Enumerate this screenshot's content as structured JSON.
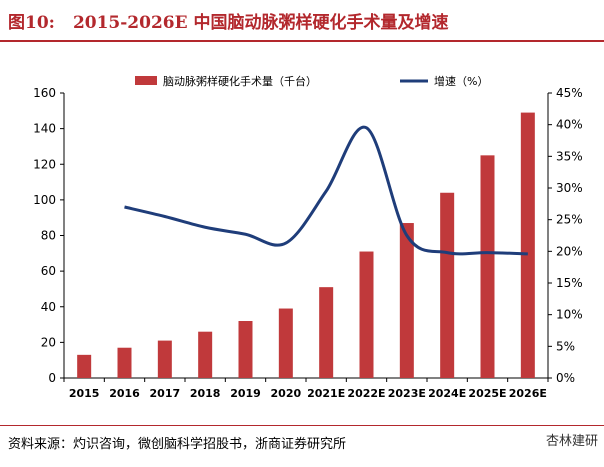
{
  "figure": {
    "number": "图10:",
    "title": "2015-2026E 中国脑动脉粥样硬化手术量及增速"
  },
  "source": "资料来源：灼识咨询，微创脑科学招股书，浙商证券研究所",
  "watermark": "杏林建研",
  "colors": {
    "bar": "#c0393b",
    "line": "#1f3d7a",
    "title": "#b3282d",
    "axis": "#000000"
  },
  "chart_data": {
    "type": "bar",
    "categories": [
      "2015",
      "2016",
      "2017",
      "2018",
      "2019",
      "2020",
      "2021E",
      "2022E",
      "2023E",
      "2024E",
      "2025E",
      "2026E"
    ],
    "series": [
      {
        "name": "脑动脉粥样硬化手术量（千台）",
        "type": "bar",
        "axis": "left",
        "values": [
          13,
          17,
          21,
          26,
          32,
          39,
          51,
          71,
          87,
          104,
          125,
          149
        ]
      },
      {
        "name": "增速（%）",
        "type": "line",
        "axis": "right",
        "values": [
          null,
          27,
          25.5,
          23.8,
          22.7,
          21.3,
          29.5,
          39.5,
          22.5,
          19.8,
          19.8,
          19.6
        ]
      }
    ],
    "ylim": [
      0,
      160
    ],
    "y_ticks": [
      "0",
      "20",
      "40",
      "60",
      "80",
      "100",
      "120",
      "140",
      "160"
    ],
    "y2lim": [
      0,
      45
    ],
    "y2_ticks": [
      "0%",
      "5%",
      "10%",
      "15%",
      "20%",
      "25%",
      "30%",
      "35%",
      "40%",
      "45%"
    ],
    "legend": {
      "bar_label": "脑动脉粥样硬化手术量（千台）",
      "line_label": "增速（%）",
      "position": "top"
    },
    "grid": false
  }
}
